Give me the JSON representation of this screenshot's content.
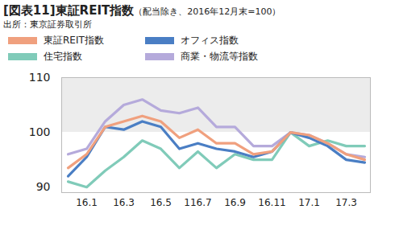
{
  "chart_data": {
    "type": "line",
    "title": "[図表11]東証REIT指数",
    "subtitle": "（配当除き、2016年12月末=100）",
    "caption": "出所：東京証券取引所",
    "categories": [
      null,
      "16.1",
      null,
      "16.3",
      null,
      "16.5",
      null,
      "116.7",
      null,
      "16.9",
      null,
      "16.11",
      null,
      "17.1",
      null,
      "17.3",
      null
    ],
    "series": [
      {
        "name": "東証REIT指数",
        "color": "#f0a07e",
        "values": [
          93.5,
          96,
          101,
          102,
          103,
          102,
          99,
          100.5,
          98,
          98,
          96,
          96.5,
          100,
          99.5,
          98,
          96,
          95
        ]
      },
      {
        "name": "オフィス指数",
        "color": "#4a7ec4",
        "values": [
          92,
          95.5,
          101,
          100.5,
          102,
          101,
          97,
          98,
          97,
          96.5,
          95.5,
          96.5,
          100,
          99,
          97.5,
          95,
          94.5
        ]
      },
      {
        "name": "住宅指数",
        "color": "#80cbb9",
        "values": [
          91,
          90,
          93,
          95.5,
          98.5,
          97,
          93.5,
          96.5,
          93.5,
          96,
          95,
          95,
          100,
          97.5,
          98.5,
          97.5,
          97.5
        ]
      },
      {
        "name": "商業・物流等指数",
        "color": "#b5aadb",
        "values": [
          96,
          97,
          102,
          105,
          106,
          104,
          103.5,
          104.5,
          101,
          101,
          97.5,
          97.5,
          100,
          99.5,
          98,
          96,
          95.5
        ]
      }
    ],
    "ylim": [
      89,
      110
    ],
    "yticks": [
      90,
      100,
      110
    ],
    "grid": false,
    "legend": "top"
  }
}
